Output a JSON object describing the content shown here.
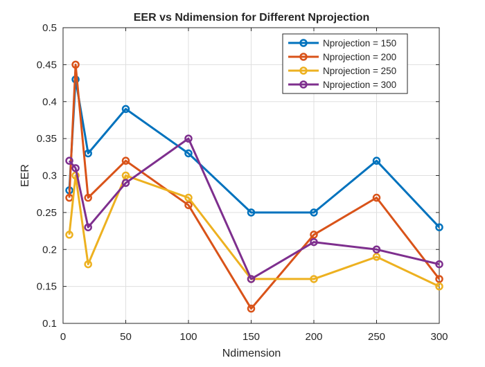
{
  "chart_data": {
    "type": "line",
    "title": "EER vs Ndimension for Different Nprojection",
    "xlabel": "Ndimension",
    "ylabel": "EER",
    "xlim": [
      0,
      300
    ],
    "ylim": [
      0.1,
      0.5
    ],
    "xticks": [
      0,
      50,
      100,
      150,
      200,
      250,
      300
    ],
    "yticks": [
      0.1,
      0.15,
      0.2,
      0.25,
      0.3,
      0.35,
      0.4,
      0.45,
      0.5
    ],
    "xtick_labels": [
      "0",
      "50",
      "100",
      "150",
      "200",
      "250",
      "300"
    ],
    "ytick_labels": [
      "0.1",
      "0.15",
      "0.2",
      "0.25",
      "0.3",
      "0.35",
      "0.4",
      "0.45",
      "0.5"
    ],
    "grid": true,
    "legend_position": "top-right",
    "x": [
      5,
      10,
      20,
      50,
      100,
      150,
      200,
      250,
      300
    ],
    "series": [
      {
        "name": "Nprojection = 150",
        "color": "#0072BD",
        "values": [
          0.28,
          0.43,
          0.33,
          0.39,
          0.33,
          0.25,
          0.25,
          0.32,
          0.23
        ]
      },
      {
        "name": "Nprojection = 200",
        "color": "#D95319",
        "values": [
          0.27,
          0.45,
          0.27,
          0.32,
          0.26,
          0.12,
          0.22,
          0.27,
          0.16
        ]
      },
      {
        "name": "Nprojection = 250",
        "color": "#EDB120",
        "values": [
          0.22,
          0.3,
          0.18,
          0.3,
          0.27,
          0.16,
          0.16,
          0.19,
          0.15
        ]
      },
      {
        "name": "Nprojection = 300",
        "color": "#7E2F8E",
        "values": [
          0.32,
          0.31,
          0.23,
          0.29,
          0.35,
          0.16,
          0.21,
          0.2,
          0.18
        ]
      }
    ]
  }
}
